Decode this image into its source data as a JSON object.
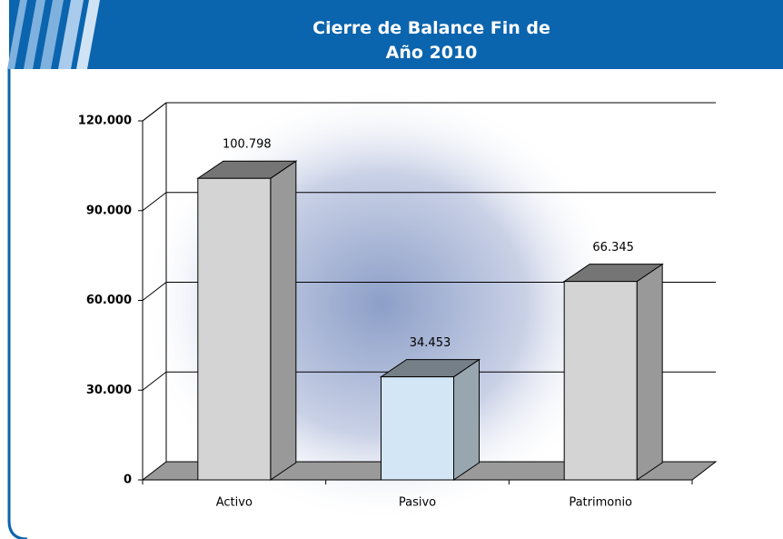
{
  "chart_data": {
    "type": "bar3d",
    "title": "Cierre de Balance Fin de Año 2010",
    "categories": [
      "Activo",
      "Pasivo",
      "Patrimonio"
    ],
    "values": [
      100798,
      34453,
      66345
    ],
    "value_labels": [
      "100.798",
      "34.453",
      "66.345"
    ],
    "colors": [
      "#d4d4d4",
      "#d3e6f5",
      "#d4d4d4"
    ],
    "ylim": [
      0,
      120000
    ],
    "yticks": [
      0,
      {
        "value": 30000,
        "label": "30.000"
      },
      {
        "value": 60000,
        "label": "60.000"
      },
      {
        "value": 90000,
        "label": "90.000"
      },
      {
        "value": 120000,
        "label": "120.000"
      }
    ],
    "grid": true
  }
}
